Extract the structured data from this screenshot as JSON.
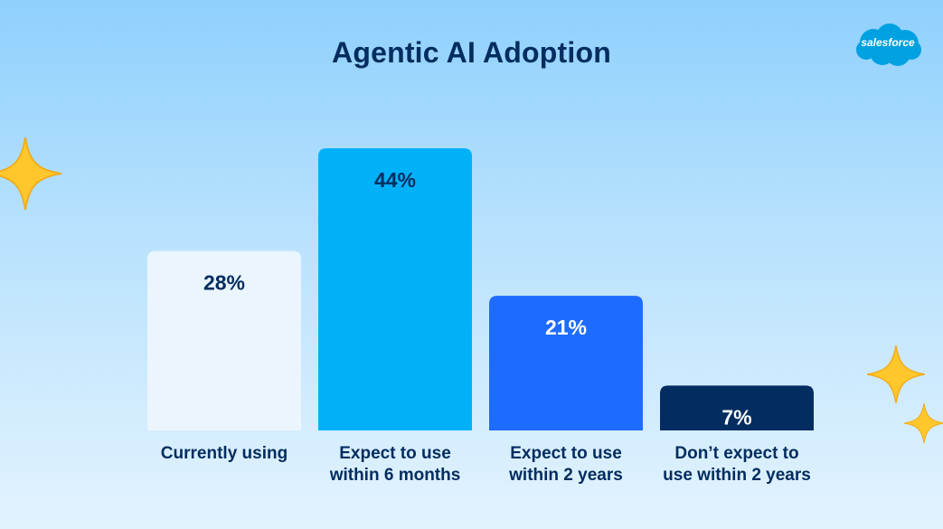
{
  "logo": {
    "text": "salesforce"
  },
  "icons": [
    "sparkle-icon"
  ],
  "colors": {
    "title": "#032d60",
    "bar_colors": [
      "#eaf5fe",
      "#00b1f8",
      "#1e6bff",
      "#032d60"
    ],
    "value_label_colors": [
      "#032d60",
      "#032d60",
      "#ffffff",
      "#ffffff"
    ],
    "sparkle": "#ffc72c"
  },
  "chart_data": {
    "type": "bar",
    "title": "Agentic AI Adoption",
    "categories": [
      "Currently using",
      "Expect to use within 6 months",
      "Expect to use within 2 years",
      "Don’t expect to use within 2 years"
    ],
    "category_lines": [
      [
        "Currently using"
      ],
      [
        "Expect to use",
        "within 6 months"
      ],
      [
        "Expect to use",
        "within 2 years"
      ],
      [
        "Don’t expect to",
        "use within 2 years"
      ]
    ],
    "values": [
      28,
      44,
      21,
      7
    ],
    "value_labels": [
      "28%",
      "44%",
      "21%",
      "7%"
    ],
    "unit": "%",
    "xlabel": "",
    "ylabel": "",
    "ylim": [
      0,
      44
    ],
    "grid": false,
    "legend": "none"
  }
}
